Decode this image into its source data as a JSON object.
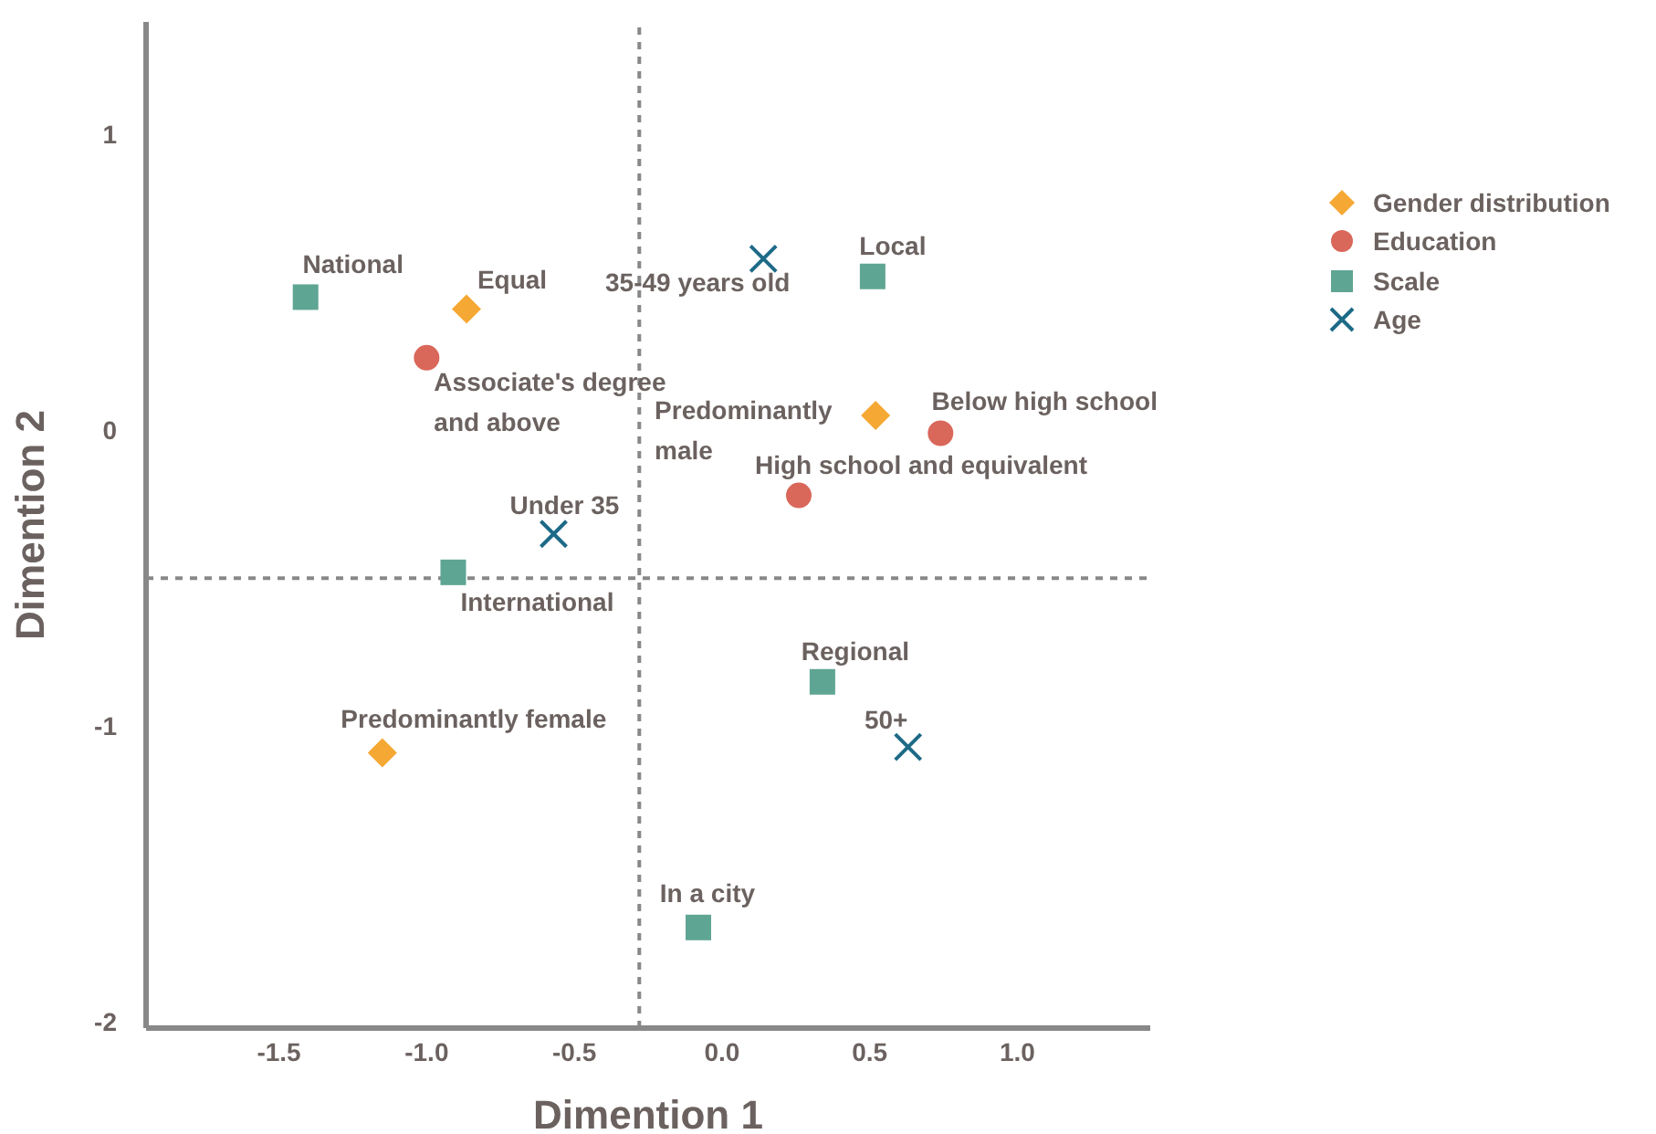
{
  "chart_data": {
    "type": "scatter",
    "xlabel": "Dimention 1",
    "ylabel": "Dimention 2",
    "xlim": [
      -1.95,
      1.45
    ],
    "ylim": [
      -2.02,
      1.38
    ],
    "xticks": [
      -1.5,
      {
        "value": -1,
        "label": "-1.0"
      },
      -0.5,
      {
        "value": 0,
        "label": "0.0"
      },
      0.5,
      {
        "value": 1,
        "label": "1.0"
      }
    ],
    "yticks": [
      1,
      0,
      -1,
      -2
    ],
    "grid": false,
    "legend": "top right",
    "series": [
      {
        "name": "Gender distribution",
        "color": "#f5a833",
        "marker": "diamond",
        "x": [
          -0.865,
          0.52,
          -1.15
        ],
        "values": [
          0.41,
          0.05,
          -1.09
        ]
      },
      {
        "name": "Education",
        "color": "#d9675a",
        "marker": "circle",
        "x": [
          -1.0,
          0.74,
          0.26
        ],
        "values": [
          0.245,
          -0.01,
          -0.22
        ]
      },
      {
        "name": "Scale",
        "color": "#5fa593",
        "marker": "square",
        "x": [
          -1.41,
          0.51,
          -0.91,
          0.34,
          -0.08
        ],
        "values": [
          0.45,
          0.52,
          -0.48,
          -0.85,
          -1.68
        ]
      },
      {
        "name": "Age",
        "color": "#1d6a87",
        "marker": "cross",
        "x": [
          0.14,
          -0.57,
          0.63
        ],
        "values": [
          0.58,
          -0.35,
          -1.07
        ]
      }
    ],
    "ref_lines": [
      {
        "axis": "x",
        "value": -0.28,
        "line_style": "dashed",
        "color": "#888888"
      },
      {
        "axis": "y",
        "value": -0.5,
        "line_style": "dashed",
        "color": "#888888"
      }
    ],
    "annotations": [
      {
        "text": "Equal",
        "x": -0.865,
        "y": 0.41
      },
      {
        "text": "Predominantly male",
        "x": 0.52,
        "y": 0.05
      },
      {
        "text": "Predominantly female",
        "x": -1.15,
        "y": -1.09
      },
      {
        "text": "Associate's degree and above",
        "x": -1.0,
        "y": 0.245
      },
      {
        "text": "Below high school",
        "x": 0.74,
        "y": -0.01
      },
      {
        "text": "High school and equivalent",
        "x": 0.26,
        "y": -0.22
      },
      {
        "text": "National",
        "x": -1.41,
        "y": 0.45
      },
      {
        "text": "Local",
        "x": 0.51,
        "y": 0.52
      },
      {
        "text": "International",
        "x": -0.91,
        "y": -0.48
      },
      {
        "text": "Regional",
        "x": 0.34,
        "y": -0.85
      },
      {
        "text": "In a city",
        "x": -0.08,
        "y": -1.68
      },
      {
        "text": "35-49 years old",
        "x": 0.14,
        "y": 0.58
      },
      {
        "text": "Under 35",
        "x": -0.57,
        "y": -0.35
      },
      {
        "text": "50+",
        "x": 0.63,
        "y": -1.07
      }
    ]
  }
}
